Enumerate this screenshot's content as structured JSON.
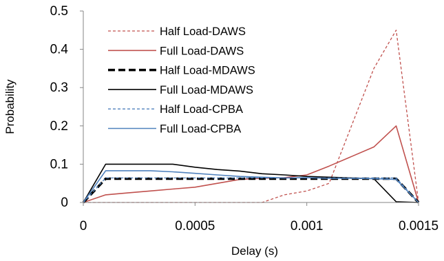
{
  "chart_data": {
    "type": "line",
    "title": "",
    "xlabel": "Delay (s)",
    "ylabel": "Probability",
    "xlim": [
      0,
      0.0015
    ],
    "ylim": [
      0,
      0.5
    ],
    "x_ticks": [
      0,
      0.0005,
      0.001,
      0.0015
    ],
    "x_tick_labels": [
      "0",
      "0.0005",
      "0.001",
      "0.0015"
    ],
    "y_ticks": [
      0,
      0.1,
      0.2,
      0.3,
      0.4,
      0.5
    ],
    "y_tick_labels": [
      "0",
      "0.1",
      "0.2",
      "0.3",
      "0.4",
      "0.5"
    ],
    "grid": false,
    "legend_position": "top-left",
    "series": [
      {
        "name": "Half Load-DAWS",
        "color": "#c0504d",
        "line_style": "dashed",
        "x": [
          0,
          0.0001,
          0.0002,
          0.0003,
          0.0004,
          0.0005,
          0.0006,
          0.0007,
          0.0008,
          0.0009,
          0.001,
          0.0011,
          0.0012,
          0.0013,
          0.0014,
          0.0015
        ],
        "y": [
          0,
          0,
          0,
          0,
          0,
          0,
          0,
          0,
          0,
          0.02,
          0.03,
          0.05,
          0.2,
          0.35,
          0.45,
          0
        ]
      },
      {
        "name": "Full Load-DAWS",
        "color": "#c0504d",
        "line_style": "solid",
        "x": [
          0,
          0.0001,
          0.0002,
          0.0003,
          0.0004,
          0.0005,
          0.0006,
          0.0007,
          0.0008,
          0.0009,
          0.001,
          0.0011,
          0.0012,
          0.0013,
          0.0014,
          0.0015
        ],
        "y": [
          0,
          0.02,
          0.025,
          0.03,
          0.035,
          0.04,
          0.05,
          0.06,
          0.063,
          0.065,
          0.072,
          0.095,
          0.12,
          0.145,
          0.2,
          0
        ]
      },
      {
        "name": "Half Load-MDAWS",
        "color": "#000000",
        "line_style": "bold-dashed",
        "x": [
          0,
          0.0001,
          0.0002,
          0.0003,
          0.0004,
          0.0005,
          0.0006,
          0.0007,
          0.0008,
          0.0009,
          0.001,
          0.0011,
          0.0012,
          0.0013,
          0.0014,
          0.0015
        ],
        "y": [
          0,
          0.062,
          0.062,
          0.062,
          0.062,
          0.062,
          0.062,
          0.062,
          0.062,
          0.062,
          0.062,
          0.062,
          0.062,
          0.062,
          0.062,
          0
        ]
      },
      {
        "name": "Full Load-MDAWS",
        "color": "#000000",
        "line_style": "solid",
        "x": [
          0,
          0.0001,
          0.0002,
          0.0003,
          0.0004,
          0.0005,
          0.0006,
          0.0007,
          0.0008,
          0.0009,
          0.001,
          0.0011,
          0.0012,
          0.0013,
          0.0014,
          0.0015
        ],
        "y": [
          0,
          0.1,
          0.1,
          0.1,
          0.1,
          0.092,
          0.086,
          0.082,
          0.075,
          0.072,
          0.068,
          0.066,
          0.064,
          0.062,
          0.002,
          0
        ]
      },
      {
        "name": "Half Load-CPBA",
        "color": "#4f81bd",
        "line_style": "dashed",
        "x": [
          0,
          0.0001,
          0.0002,
          0.0003,
          0.0004,
          0.0005,
          0.0006,
          0.0007,
          0.0008,
          0.0009,
          0.001,
          0.0011,
          0.0012,
          0.0013,
          0.0014,
          0.0015
        ],
        "y": [
          0,
          0.064,
          0.064,
          0.064,
          0.064,
          0.064,
          0.064,
          0.064,
          0.064,
          0.064,
          0.064,
          0.064,
          0.064,
          0.064,
          0.064,
          0
        ]
      },
      {
        "name": "Full Load-CPBA",
        "color": "#4f81bd",
        "line_style": "solid",
        "x": [
          0,
          0.0001,
          0.0002,
          0.0003,
          0.0004,
          0.0005,
          0.0006,
          0.0007,
          0.0008,
          0.0009,
          0.001,
          0.0011,
          0.0012,
          0.0013,
          0.0014,
          0.0015
        ],
        "y": [
          0,
          0.083,
          0.083,
          0.083,
          0.08,
          0.076,
          0.072,
          0.068,
          0.066,
          0.064,
          0.065,
          0.063,
          0.063,
          0.062,
          0.06,
          0
        ]
      }
    ]
  }
}
